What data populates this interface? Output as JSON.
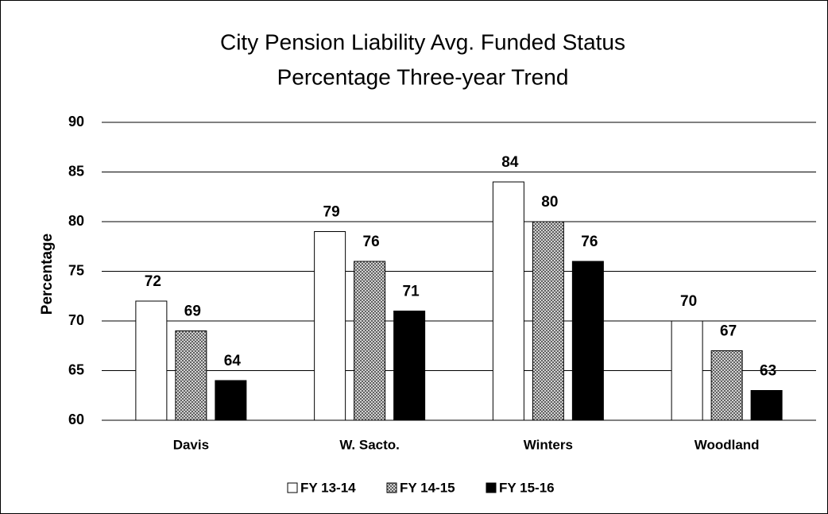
{
  "chart_data": {
    "type": "bar",
    "title": [
      "City Pension Liability Avg. Funded Status",
      "Percentage Three-year Trend"
    ],
    "y_label": "Percentage",
    "categories": [
      "Davis",
      "W. Sacto.",
      "Winters",
      "Woodland"
    ],
    "series": [
      {
        "name": "FY 13-14",
        "color": "#ffffff",
        "values": [
          72,
          79,
          84,
          70
        ]
      },
      {
        "name": "FY 14-15",
        "color": "#888888",
        "pattern": "crosshatch",
        "values": [
          69,
          76,
          80,
          67
        ]
      },
      {
        "name": "FY 15-16",
        "color": "#000000",
        "values": [
          64,
          71,
          76,
          63
        ]
      }
    ],
    "ylim": [
      60,
      90
    ],
    "yticks": [
      60,
      65,
      70,
      75,
      80,
      85,
      90
    ],
    "grid": true,
    "legend": "bottom"
  }
}
